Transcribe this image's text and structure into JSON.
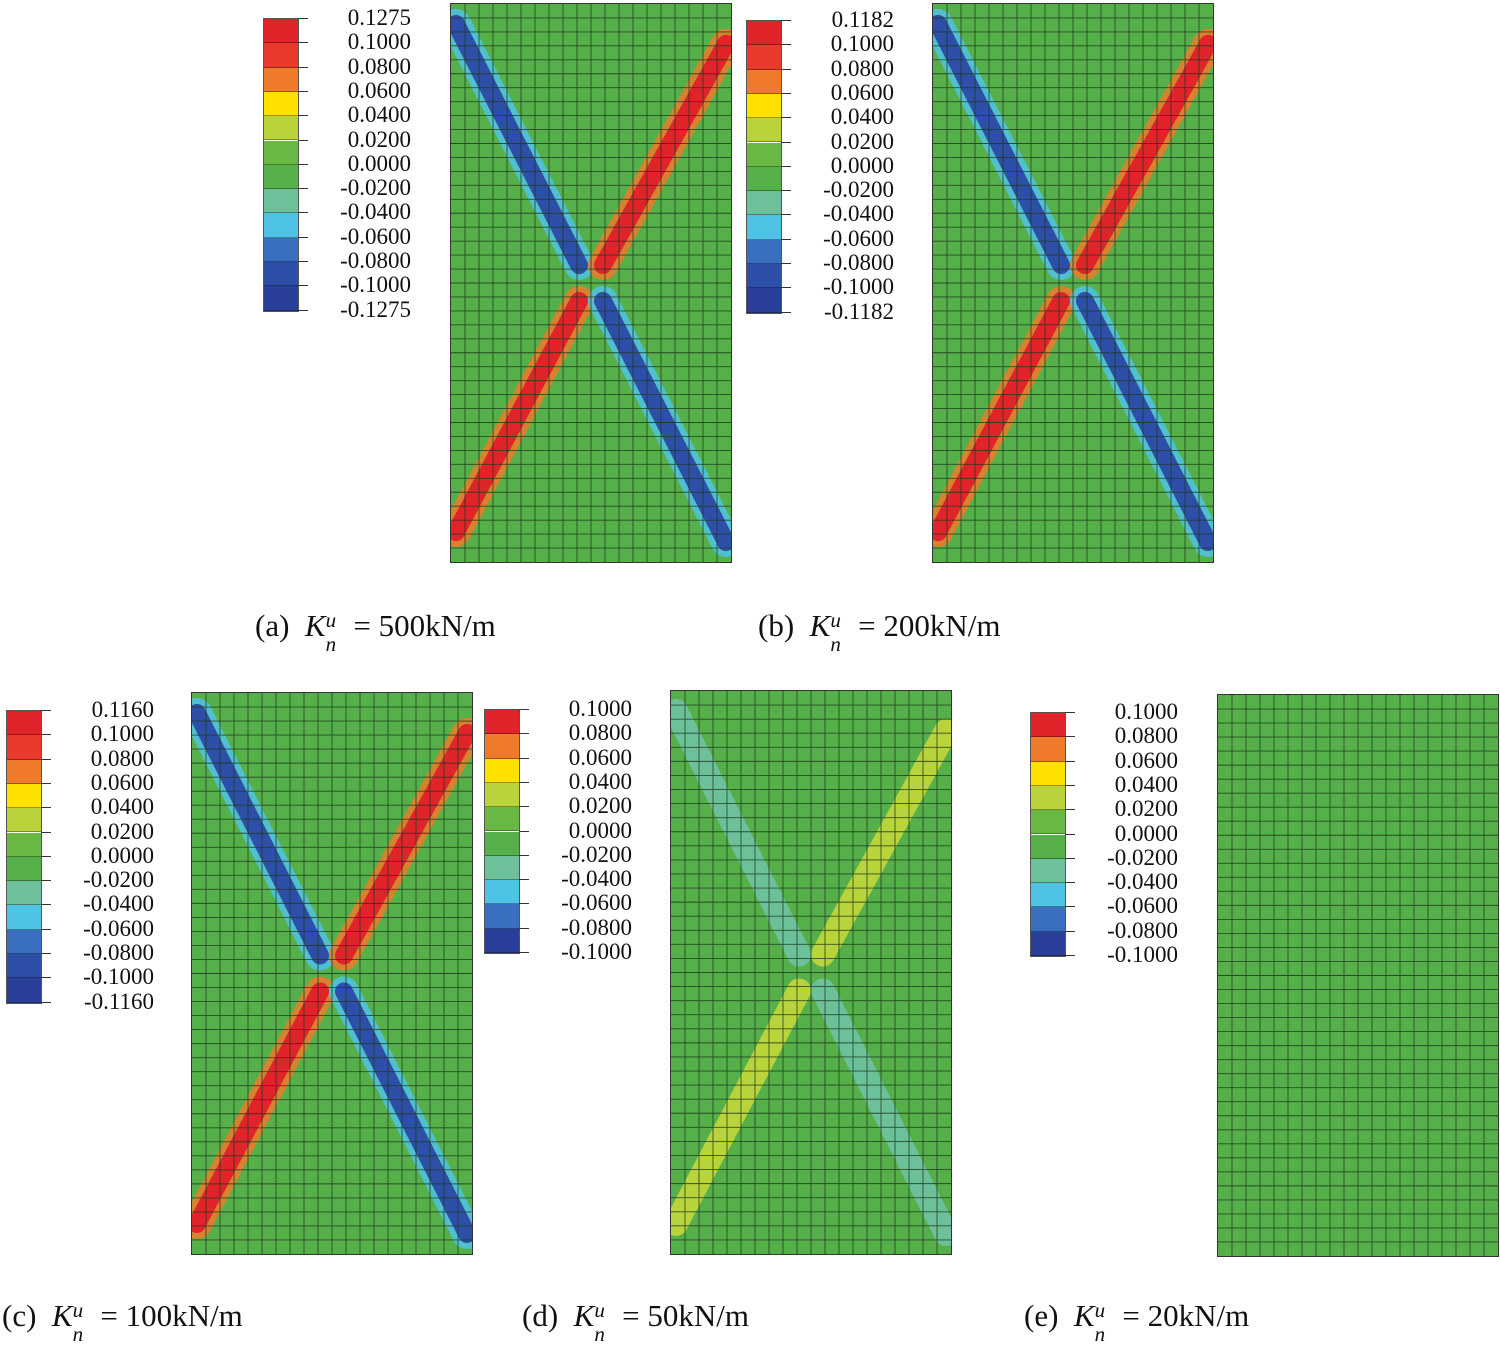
{
  "colors": {
    "red": "#e1242a",
    "red2": "#e8392c",
    "orange": "#ee7a2a",
    "yellow": "#ffe100",
    "lime": "#b9d43a",
    "green": "#6ab844",
    "green_base": "#56b04a",
    "teal": "#6cc19a",
    "cyan": "#4fc3e6",
    "blue": "#3a6fbf",
    "navy": "#2d4fa8",
    "darkblue": "#2a3f9a",
    "grid": "#1f3a1f"
  },
  "legends": {
    "a": [
      "0.1275",
      "0.1000",
      "0.0800",
      "0.0600",
      "0.0400",
      "0.0200",
      "0.0000",
      "-0.0200",
      "-0.0400",
      "-0.0600",
      "-0.0800",
      "-0.1000",
      "-0.1275"
    ],
    "b": [
      "0.1182",
      "0.1000",
      "0.0800",
      "0.0600",
      "0.0400",
      "0.0200",
      "0.0000",
      "-0.0200",
      "-0.0400",
      "-0.0600",
      "-0.0800",
      "-0.1000",
      "-0.1182"
    ],
    "c": [
      "0.1160",
      "0.1000",
      "0.0800",
      "0.0600",
      "0.0400",
      "0.0200",
      "0.0000",
      "-0.0200",
      "-0.0400",
      "-0.0600",
      "-0.0800",
      "-0.1000",
      "-0.1160"
    ],
    "d": [
      "0.1000",
      "0.0800",
      "0.0600",
      "0.0400",
      "0.0200",
      "0.0000",
      "-0.0200",
      "-0.0400",
      "-0.0600",
      "-0.0800",
      "-0.1000"
    ],
    "e": [
      "0.1000",
      "0.0800",
      "0.0600",
      "0.0400",
      "0.0200",
      "0.0000",
      "-0.0200",
      "-0.0400",
      "-0.0600",
      "-0.0800",
      "-0.1000"
    ]
  },
  "captions": {
    "a": {
      "label": "(a)",
      "symbol": "K",
      "sup": "u",
      "sub": "n",
      "rest": " = 500kN/m"
    },
    "b": {
      "label": "(b)",
      "symbol": "K",
      "sup": "u",
      "sub": "n",
      "rest": " = 200kN/m"
    },
    "c": {
      "label": "(c)",
      "symbol": "K",
      "sup": "u",
      "sub": "n",
      "rest": " = 100kN/m"
    },
    "d": {
      "label": "(d)",
      "symbol": "K",
      "sup": "u",
      "sub": "n",
      "rest": " = 50kN/m"
    },
    "e": {
      "label": "(e)",
      "symbol": "K",
      "sup": "u",
      "sub": "n",
      "rest": " = 20kN/m"
    }
  },
  "bands": {
    "a": {
      "pos": "red",
      "neg": "navy",
      "halo_pos": "orange",
      "halo_neg": "cyan"
    },
    "b": {
      "pos": "red",
      "neg": "navy",
      "halo_pos": "orange",
      "halo_neg": "cyan"
    },
    "c": {
      "pos": "red",
      "neg": "navy",
      "halo_pos": "orange",
      "halo_neg": "cyan"
    },
    "d": {
      "pos": "lime",
      "neg": "teal",
      "halo_pos": "green",
      "halo_neg": "green"
    },
    "e": {
      "pos": "green_base",
      "neg": "green_base",
      "halo_pos": "green_base",
      "halo_neg": "green_base"
    }
  }
}
